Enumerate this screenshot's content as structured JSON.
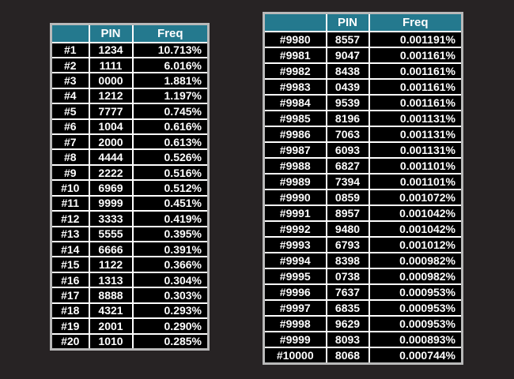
{
  "colors": {
    "page_background": "#272324",
    "header_background": "#24798e",
    "cell_background": "#000000",
    "grid_border": "#ffffff",
    "outer_border": "#b9b9b9",
    "text": "#ffffff"
  },
  "chart_data": [
    {
      "type": "table",
      "headers": [
        "",
        "PIN",
        "Freq"
      ],
      "rows": [
        [
          "#1",
          "1234",
          "10.713%"
        ],
        [
          "#2",
          "1111",
          "6.016%"
        ],
        [
          "#3",
          "0000",
          "1.881%"
        ],
        [
          "#4",
          "1212",
          "1.197%"
        ],
        [
          "#5",
          "7777",
          "0.745%"
        ],
        [
          "#6",
          "1004",
          "0.616%"
        ],
        [
          "#7",
          "2000",
          "0.613%"
        ],
        [
          "#8",
          "4444",
          "0.526%"
        ],
        [
          "#9",
          "2222",
          "0.516%"
        ],
        [
          "#10",
          "6969",
          "0.512%"
        ],
        [
          "#11",
          "9999",
          "0.451%"
        ],
        [
          "#12",
          "3333",
          "0.419%"
        ],
        [
          "#13",
          "5555",
          "0.395%"
        ],
        [
          "#14",
          "6666",
          "0.391%"
        ],
        [
          "#15",
          "1122",
          "0.366%"
        ],
        [
          "#16",
          "1313",
          "0.304%"
        ],
        [
          "#17",
          "8888",
          "0.303%"
        ],
        [
          "#18",
          "4321",
          "0.293%"
        ],
        [
          "#19",
          "2001",
          "0.290%"
        ],
        [
          "#20",
          "1010",
          "0.285%"
        ]
      ]
    },
    {
      "type": "table",
      "headers": [
        "",
        "PIN",
        "Freq"
      ],
      "rows": [
        [
          "#9980",
          "8557",
          "0.001191%"
        ],
        [
          "#9981",
          "9047",
          "0.001161%"
        ],
        [
          "#9982",
          "8438",
          "0.001161%"
        ],
        [
          "#9983",
          "0439",
          "0.001161%"
        ],
        [
          "#9984",
          "9539",
          "0.001161%"
        ],
        [
          "#9985",
          "8196",
          "0.001131%"
        ],
        [
          "#9986",
          "7063",
          "0.001131%"
        ],
        [
          "#9987",
          "6093",
          "0.001131%"
        ],
        [
          "#9988",
          "6827",
          "0.001101%"
        ],
        [
          "#9989",
          "7394",
          "0.001101%"
        ],
        [
          "#9990",
          "0859",
          "0.001072%"
        ],
        [
          "#9991",
          "8957",
          "0.001042%"
        ],
        [
          "#9992",
          "9480",
          "0.001042%"
        ],
        [
          "#9993",
          "6793",
          "0.001012%"
        ],
        [
          "#9994",
          "8398",
          "0.000982%"
        ],
        [
          "#9995",
          "0738",
          "0.000982%"
        ],
        [
          "#9996",
          "7637",
          "0.000953%"
        ],
        [
          "#9997",
          "6835",
          "0.000953%"
        ],
        [
          "#9998",
          "9629",
          "0.000953%"
        ],
        [
          "#9999",
          "8093",
          "0.000893%"
        ],
        [
          "#10000",
          "8068",
          "0.000744%"
        ]
      ]
    }
  ]
}
